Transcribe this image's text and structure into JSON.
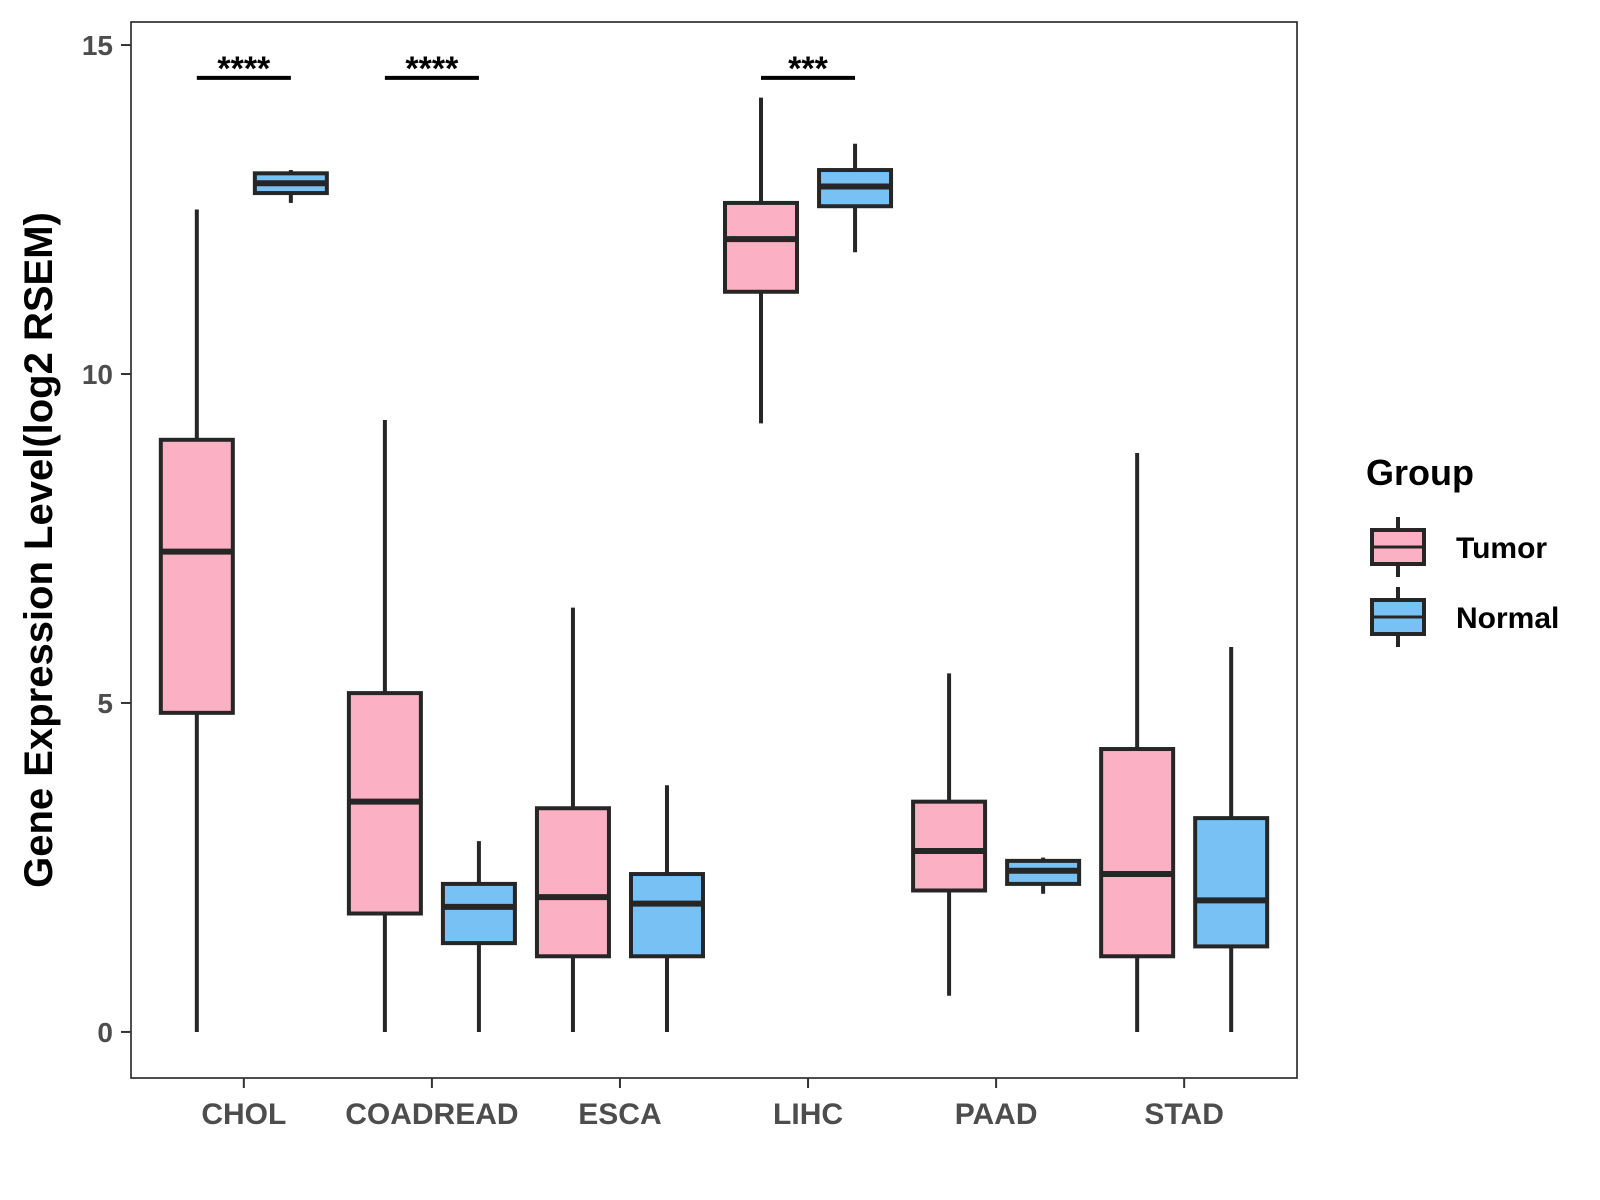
{
  "chart_data": {
    "type": "box",
    "title": "",
    "xlabel": "",
    "ylabel": "Gene Expression Level(log2 RSEM)",
    "ylim": [
      -0.7,
      15.35
    ],
    "yticks": [
      0,
      5,
      10,
      15
    ],
    "grid": false,
    "legend": {
      "title": "Group",
      "placement": "right",
      "entries": [
        {
          "name": "Tumor",
          "color": "#FBB0C3"
        },
        {
          "name": "Normal",
          "color": "#78C1F5"
        }
      ]
    },
    "categories": [
      "CHOL",
      "COADREAD",
      "ESCA",
      "LIHC",
      "PAAD",
      "STAD"
    ],
    "series": [
      {
        "name": "Tumor",
        "color": "#FBB0C3",
        "boxes": [
          {
            "min": 0.0,
            "q1": 4.85,
            "median": 7.3,
            "q3": 9.0,
            "max": 12.5
          },
          {
            "min": 0.0,
            "q1": 1.8,
            "median": 3.5,
            "q3": 5.15,
            "max": 9.3
          },
          {
            "min": 0.0,
            "q1": 1.15,
            "median": 2.05,
            "q3": 3.4,
            "max": 6.45
          },
          {
            "min": 9.25,
            "q1": 11.25,
            "median": 12.05,
            "q3": 12.6,
            "max": 14.2
          },
          {
            "min": 0.55,
            "q1": 2.15,
            "median": 2.75,
            "q3": 3.5,
            "max": 5.45
          },
          {
            "min": 0.0,
            "q1": 1.15,
            "median": 2.4,
            "q3": 4.3,
            "max": 8.8
          }
        ]
      },
      {
        "name": "Normal",
        "color": "#78C1F5",
        "boxes": [
          {
            "min": 12.6,
            "q1": 12.75,
            "median": 12.9,
            "q3": 13.05,
            "max": 13.1
          },
          {
            "min": 0.0,
            "q1": 1.35,
            "median": 1.9,
            "q3": 2.25,
            "max": 2.9
          },
          {
            "min": 0.0,
            "q1": 1.15,
            "median": 1.95,
            "q3": 2.4,
            "max": 3.75
          },
          {
            "min": 11.85,
            "q1": 12.55,
            "median": 12.85,
            "q3": 13.1,
            "max": 13.5
          },
          {
            "min": 2.1,
            "q1": 2.25,
            "median": 2.45,
            "q3": 2.6,
            "max": 2.65
          },
          {
            "min": 0.0,
            "q1": 1.3,
            "median": 2.0,
            "q3": 3.25,
            "max": 5.85
          }
        ]
      }
    ],
    "annotations": [
      {
        "category": "CHOL",
        "text": "****",
        "y": 14.5
      },
      {
        "category": "COADREAD",
        "text": "****",
        "y": 14.5
      },
      {
        "category": "LIHC",
        "text": "***",
        "y": 14.5
      }
    ]
  }
}
